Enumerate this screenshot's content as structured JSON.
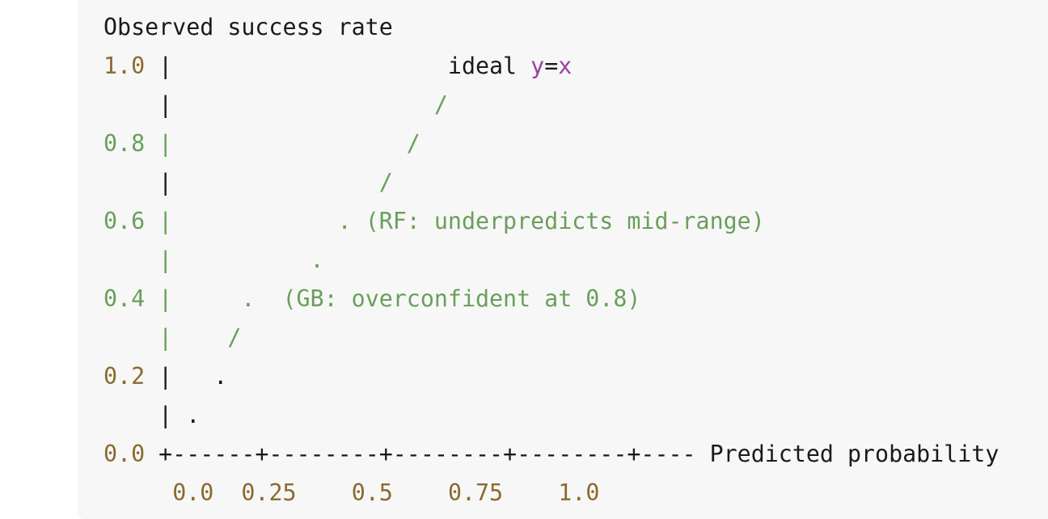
{
  "title": "Observed success rate",
  "lines": [
    {
      "y": "1.0",
      "sep": " |",
      "rest_pre": "                    ideal ",
      "y_var": "y",
      "eq": "=",
      "x_var": "x"
    },
    {
      "y": "   ",
      "sep": " |",
      "rest": "                   /"
    },
    {
      "y": "0.8",
      "sep": " |",
      "rest": "                 /"
    },
    {
      "y": "   ",
      "sep": " |",
      "rest": "               /"
    },
    {
      "y": "0.6",
      "sep": " |",
      "rest": "            . (RF: underpredicts mid-range)"
    },
    {
      "y": "   ",
      "sep": " |",
      "rest": "          ."
    },
    {
      "y": "0.4",
      "sep": " |",
      "rest": "     .  (GB: overconfident at 0.8)"
    },
    {
      "y": "   ",
      "sep": " |",
      "rest": "    /"
    },
    {
      "y": "0.2",
      "sep": " |",
      "rest": "   ."
    },
    {
      "y": "   ",
      "sep": " |",
      "rest": " ."
    }
  ],
  "x_axis": {
    "origin_label": "0.0",
    "axis": " +------+--------+--------+--------+---- ",
    "label": "Predicted probability"
  },
  "x_ticks": {
    "lead": "     ",
    "items": [
      "0.0",
      "0.25",
      "0.5",
      "0.75",
      "1.0"
    ],
    "gaps": [
      "  ",
      "    ",
      "    ",
      "    "
    ]
  }
}
